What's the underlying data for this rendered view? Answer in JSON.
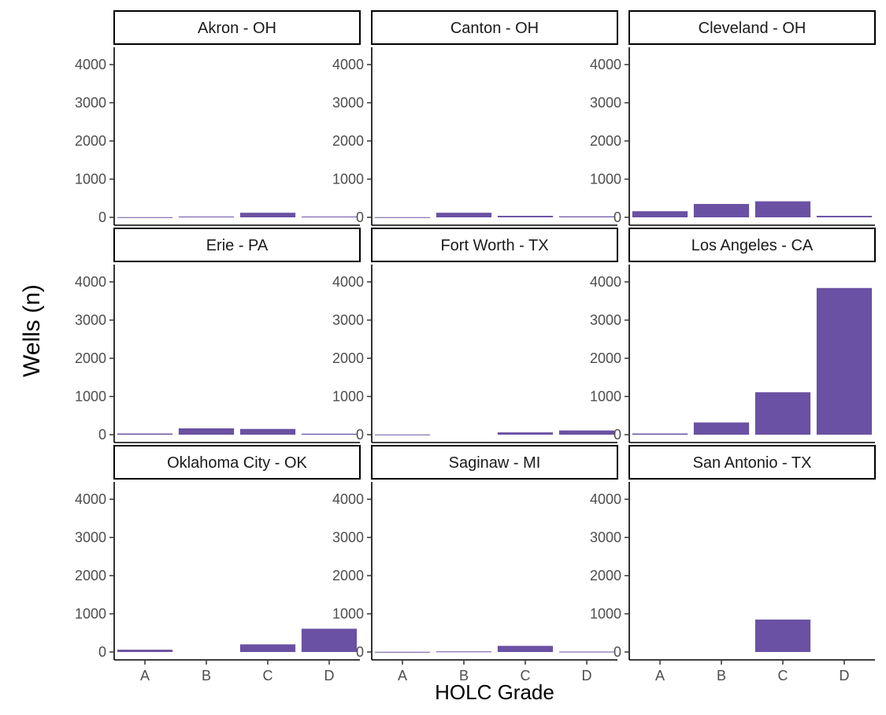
{
  "chart_data": {
    "type": "bar",
    "facet_layout": "3x3",
    "bar_color": "#6a51a3",
    "xlabel": "HOLC Grade",
    "ylabel": "Wells (n)",
    "categories": [
      "A",
      "B",
      "C",
      "D"
    ],
    "y_ticks": [
      "0",
      "1000",
      "2000",
      "3000",
      "4000"
    ],
    "ylim": [
      0,
      4000
    ],
    "grid": false,
    "panels": [
      {
        "title": "Akron - OH",
        "values": [
          5,
          20,
          120,
          20
        ]
      },
      {
        "title": "Canton - OH",
        "values": [
          5,
          120,
          40,
          25
        ]
      },
      {
        "title": "Cleveland - OH",
        "values": [
          160,
          350,
          420,
          40
        ]
      },
      {
        "title": "Erie - PA",
        "values": [
          30,
          165,
          150,
          25
        ]
      },
      {
        "title": "Fort Worth - TX",
        "values": [
          5,
          0,
          60,
          110
        ]
      },
      {
        "title": "Los Angeles - CA",
        "values": [
          30,
          320,
          1110,
          3840
        ]
      },
      {
        "title": "Oklahoma City - OK",
        "values": [
          60,
          0,
          200,
          610
        ]
      },
      {
        "title": "Saginaw - MI",
        "values": [
          5,
          15,
          160,
          10
        ]
      },
      {
        "title": "San Antonio - TX",
        "values": [
          0,
          0,
          850,
          0
        ]
      }
    ]
  }
}
